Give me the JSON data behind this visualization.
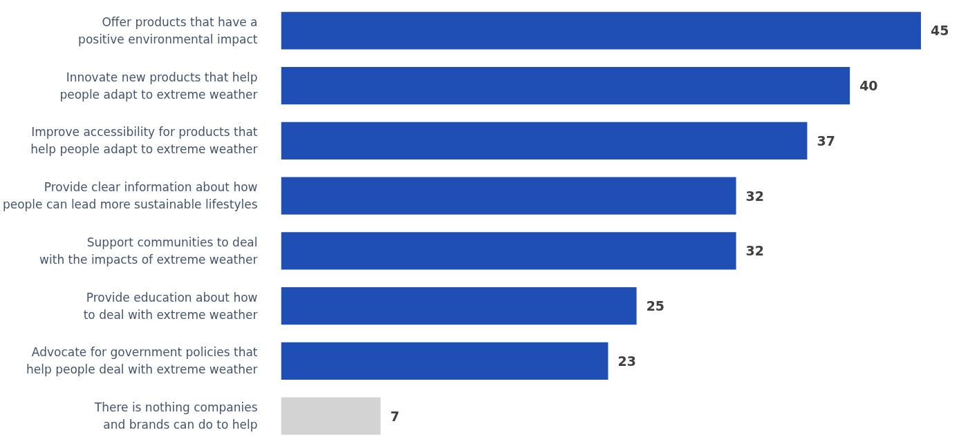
{
  "chart_data": {
    "type": "bar",
    "orientation": "horizontal",
    "data_labels": true,
    "grid": false,
    "tick_labels": "y",
    "categories": [
      "Offer products that have a\npositive environmental impact",
      "Innovate new products that help\npeople adapt to extreme weather",
      "Improve accessibility for products that\nhelp people adapt to extreme weather",
      "Provide clear information about how\npeople can lead more sustainable lifestyles",
      "Support communities to deal\nwith the impacts of extreme weather",
      "Provide education about how\nto deal with extreme weather",
      "Advocate for government policies that\nhelp people deal with extreme weather",
      "There is nothing companies\nand brands can do to help"
    ],
    "values": [
      45,
      40,
      37,
      32,
      32,
      25,
      23,
      7
    ],
    "colors": [
      "#1f4fb5",
      "#1f4fb5",
      "#1f4fb5",
      "#1f4fb5",
      "#1f4fb5",
      "#1f4fb5",
      "#1f4fb5",
      "#d3d3d3"
    ]
  }
}
